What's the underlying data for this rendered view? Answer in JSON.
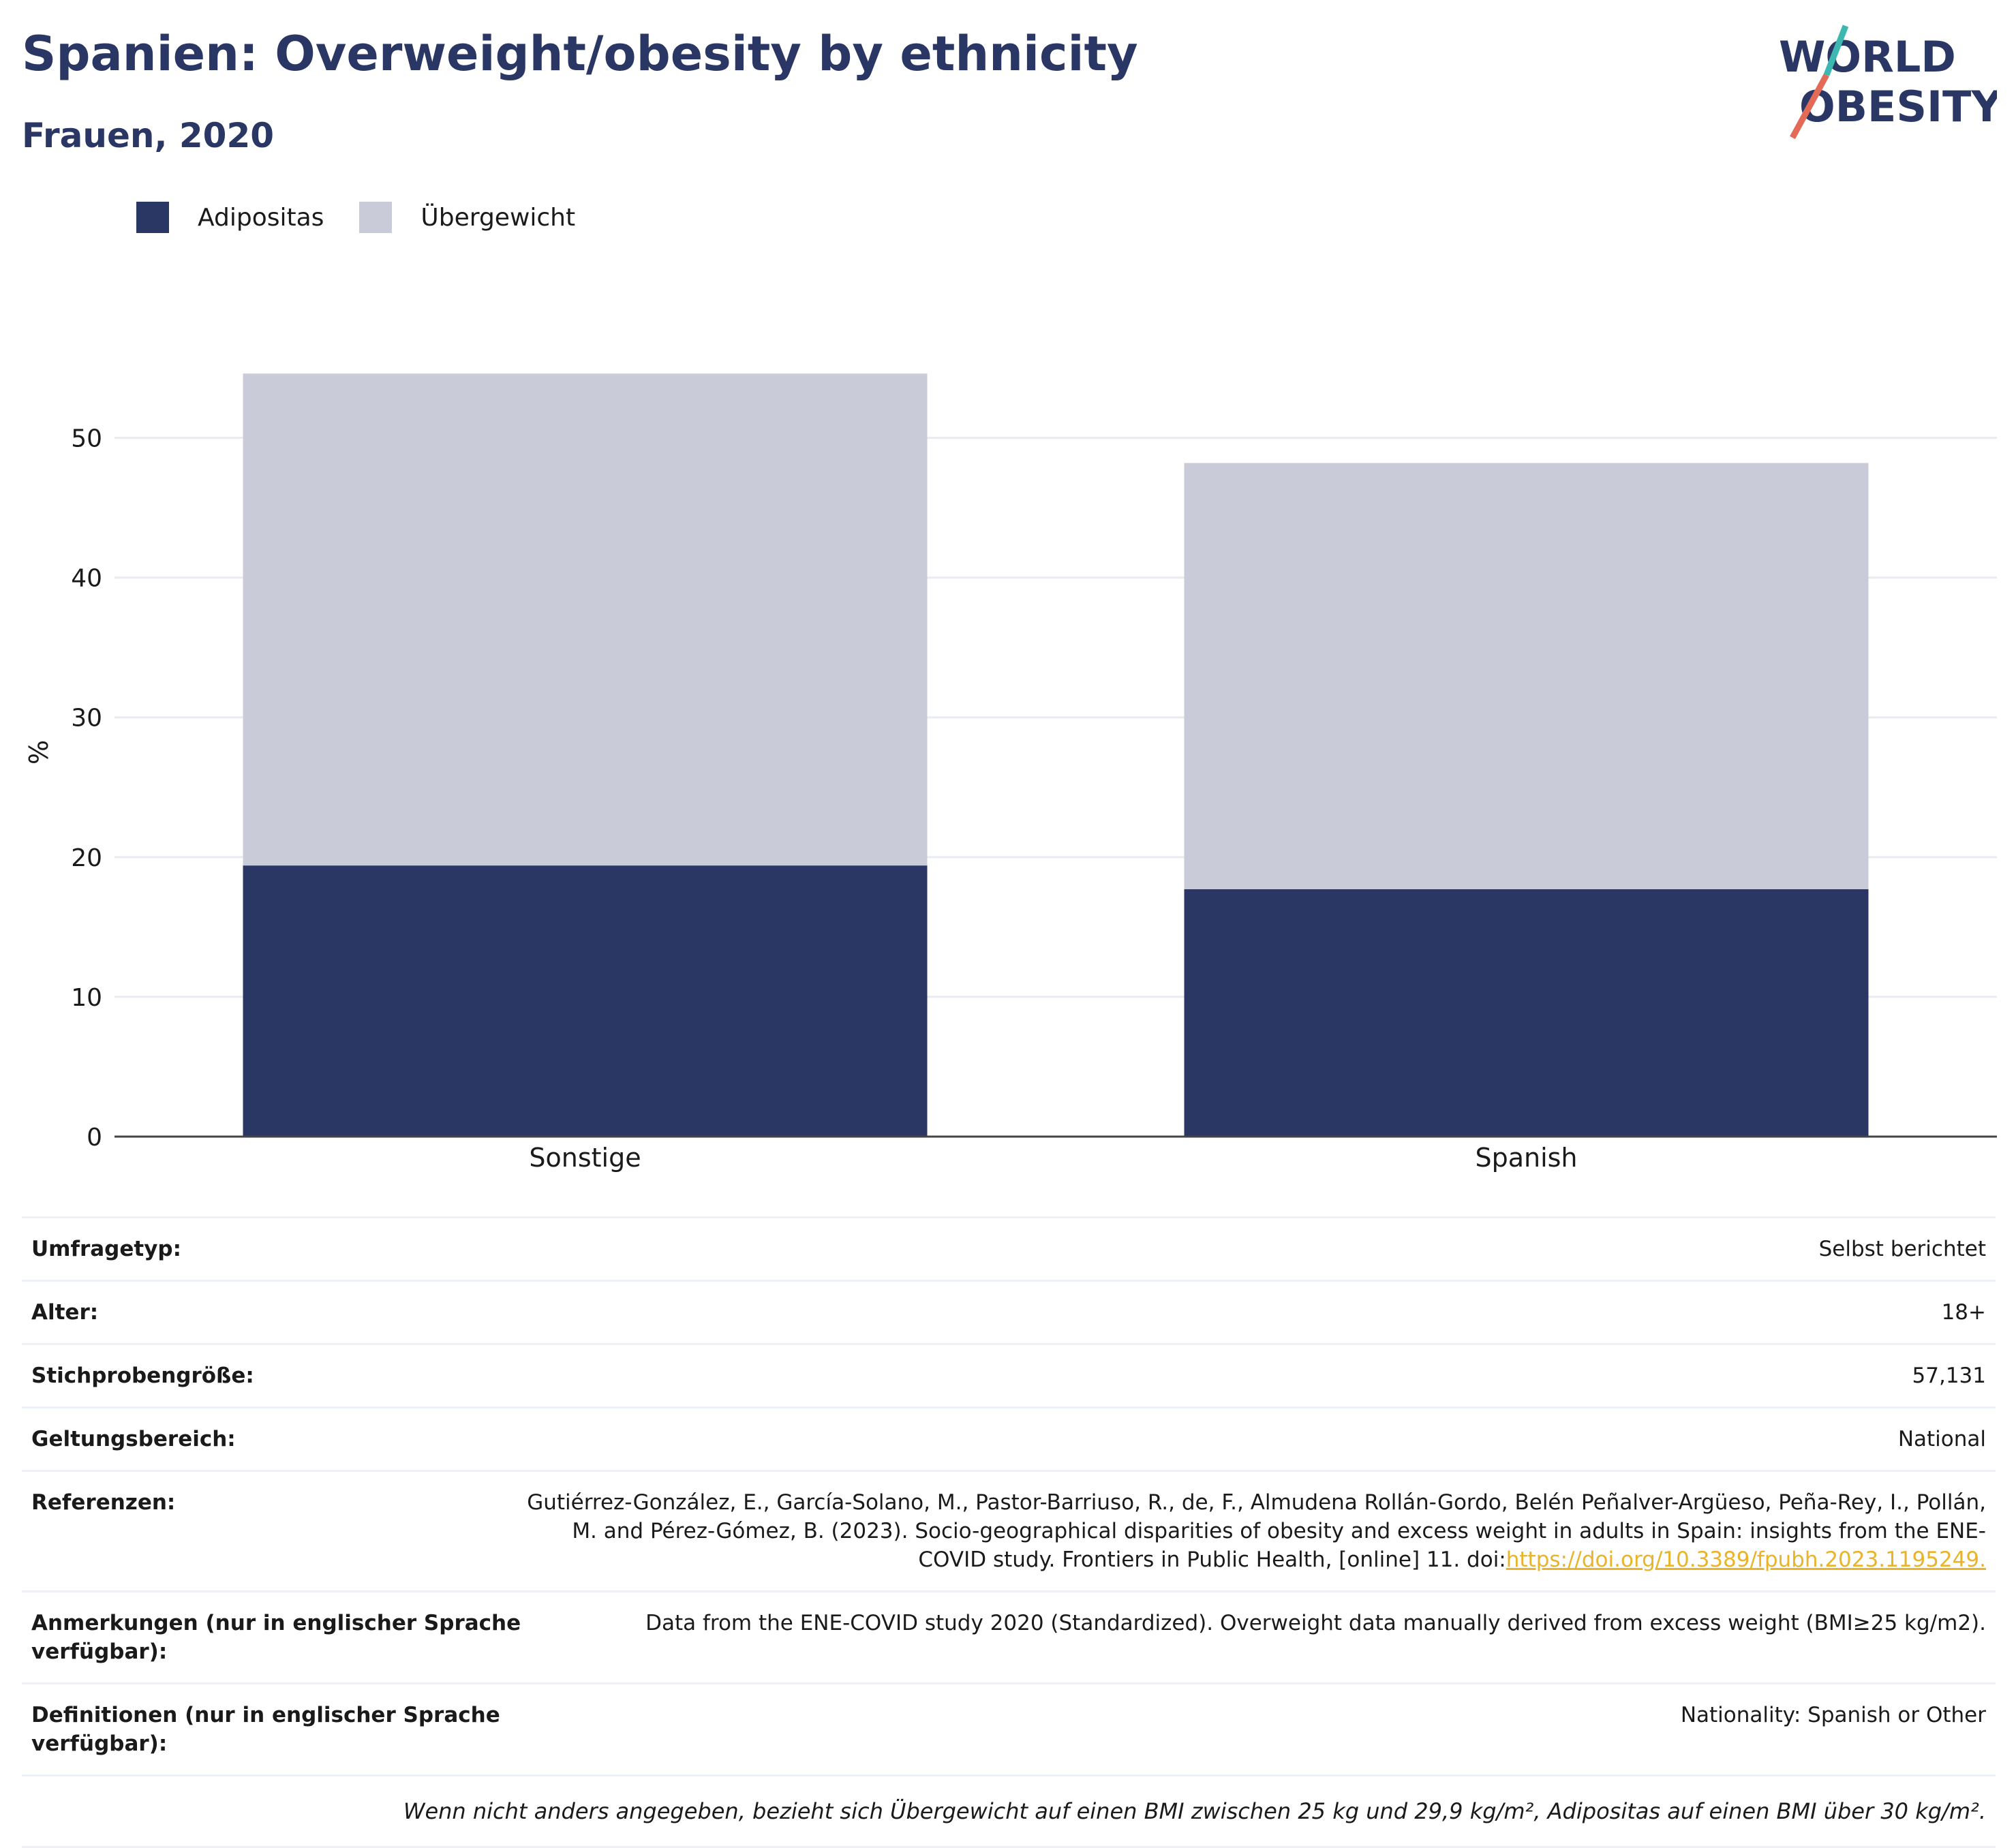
{
  "header": {
    "title": "Spanien: Overweight/obesity by ethnicity",
    "subtitle": "Frauen, 2020",
    "logo_line1": "WORLD",
    "logo_line2": "OBESITY"
  },
  "legend": {
    "items": [
      {
        "label": "Adipositas",
        "color": "#2a3664"
      },
      {
        "label": "Übergewicht",
        "color": "#c9ccd8"
      }
    ]
  },
  "chart_data": {
    "type": "bar",
    "stacked": true,
    "categories": [
      "Sonstige",
      "Spanish"
    ],
    "series": [
      {
        "name": "Adipositas",
        "values": [
          19.4,
          17.7
        ],
        "color": "#2a3664"
      },
      {
        "name": "Übergewicht",
        "values": [
          35.2,
          30.5
        ],
        "color": "#c9ccd8"
      }
    ],
    "ylabel": "%",
    "ylim": [
      0,
      55
    ],
    "yticks": [
      0,
      10,
      20,
      30,
      40,
      50
    ],
    "grid": true,
    "legend_position": "top-left"
  },
  "info": {
    "rows": [
      {
        "key": "Umfragetyp:",
        "value": "Selbst berichtet"
      },
      {
        "key": "Alter:",
        "value": "18+"
      },
      {
        "key": "Stichprobengröße:",
        "value": "57,131"
      },
      {
        "key": "Geltungsbereich:",
        "value": "National"
      }
    ],
    "references_key": "Referenzen:",
    "references_text": "Gutiérrez-González, E., García-Solano, M., Pastor-Barriuso, R., de, F., Almudena Rollán-Gordo, Belén Peñalver-Argüeso, Peña-Rey, I., Pollán, M. and Pérez-Gómez, B. (2023). Socio-geographical disparities of obesity and excess weight in adults in Spain: insights from the ENE-COVID study. Frontiers in Public Health, [online] 11. doi:",
    "references_link": "https://doi.org/10.3389/fpubh.2023.1195249.",
    "references_link_icon": "",
    "notes_key": "Anmerkungen (nur in englischer Sprache verfügbar):",
    "notes_value": "Data from the ENE-COVID study 2020 (Standardized). Overweight data manually derived from excess weight (BMI≥25 kg/m2).",
    "definitions_key": "Definitionen (nur in englischer Sprache verfügbar):",
    "definitions_value": "Nationality: Spanish or Other",
    "footnote": "Wenn nicht anders angegeben, bezieht sich Übergewicht auf einen BMI zwischen 25 kg und 29,9 kg/m², Adipositas auf einen BMI über 30 kg/m²."
  }
}
